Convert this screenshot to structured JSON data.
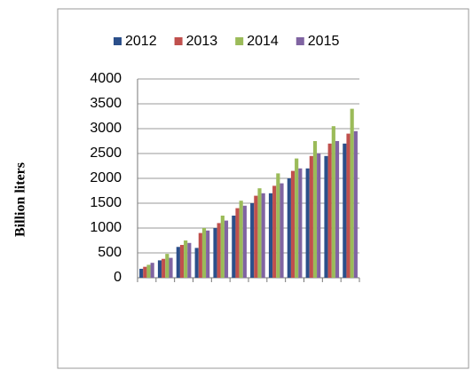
{
  "chart_data": {
    "type": "bar",
    "y_label": "Billion liters",
    "categories": [
      null,
      null,
      null,
      null,
      null,
      null,
      null,
      null,
      null,
      null,
      null,
      null
    ],
    "series": [
      {
        "name": "2012",
        "color": "#2b4f8a",
        "values": [
          180,
          350,
          620,
          600,
          1000,
          1250,
          1500,
          1700,
          2000,
          2200,
          2450,
          2700
        ]
      },
      {
        "name": "2013",
        "color": "#c0504d",
        "values": [
          220,
          380,
          660,
          900,
          1100,
          1400,
          1650,
          1850,
          2150,
          2450,
          2700,
          2900
        ]
      },
      {
        "name": "2014",
        "color": "#9bbb59",
        "values": [
          260,
          480,
          750,
          1000,
          1250,
          1550,
          1800,
          2100,
          2400,
          2750,
          3050,
          3400
        ]
      },
      {
        "name": "2015",
        "color": "#8064a2",
        "values": [
          300,
          400,
          700,
          950,
          1150,
          1450,
          1700,
          1900,
          2200,
          2500,
          2750,
          2950
        ]
      }
    ],
    "ylim": [
      0,
      4000
    ],
    "yticks": [
      0,
      500,
      1000,
      1500,
      2000,
      2500,
      3000,
      3500,
      4000
    ],
    "grid": true,
    "legend": "top"
  }
}
